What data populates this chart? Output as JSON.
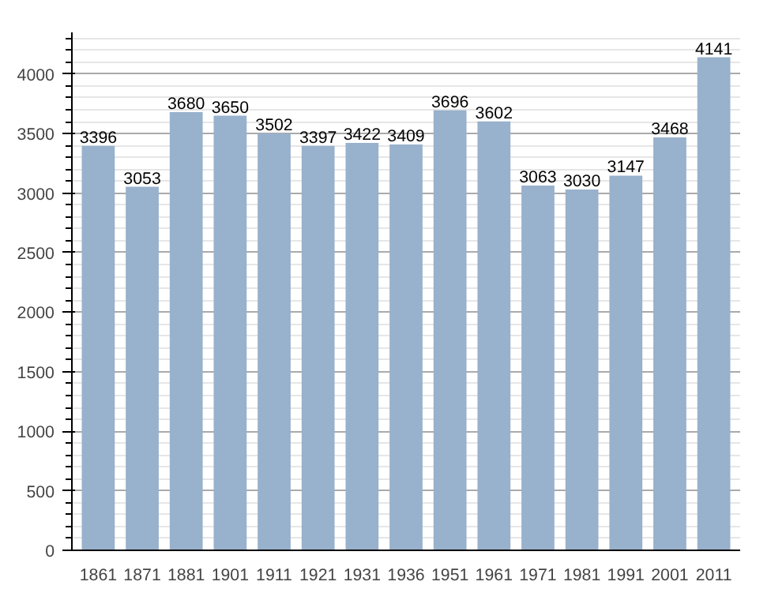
{
  "chart_data": {
    "type": "bar",
    "categories": [
      "1861",
      "1871",
      "1881",
      "1901",
      "1911",
      "1921",
      "1931",
      "1936",
      "1951",
      "1961",
      "1971",
      "1981",
      "1991",
      "2001",
      "2011"
    ],
    "values": [
      3396,
      3053,
      3680,
      3650,
      3502,
      3397,
      3422,
      3409,
      3696,
      3602,
      3063,
      3030,
      3147,
      3468,
      4141
    ],
    "color": "#98b1cc",
    "ylim": [
      0,
      4350
    ],
    "yticks": [
      0,
      500,
      1000,
      1500,
      2000,
      2500,
      3000,
      3500,
      4000
    ],
    "grid": "y",
    "data_labels": true
  }
}
